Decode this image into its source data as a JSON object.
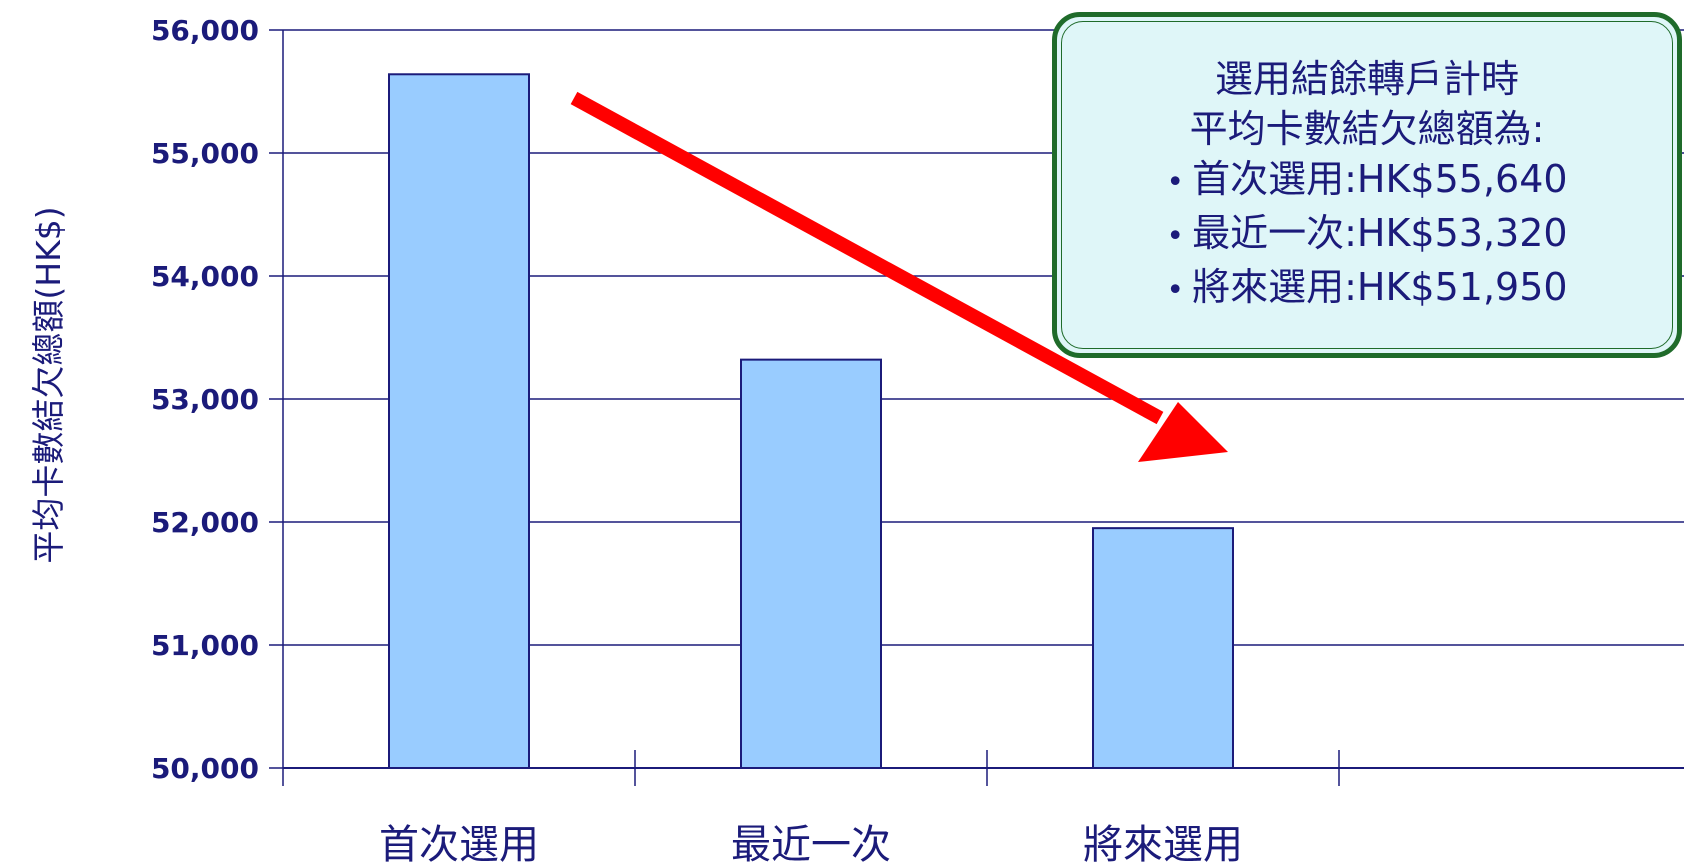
{
  "chart_data": {
    "type": "bar",
    "categories": [
      "首次選用",
      "最近一次",
      "將來選用"
    ],
    "values": [
      55640,
      53320,
      51950
    ],
    "ylabel": "平均卡數結欠總額(HK$)",
    "xlabel": "",
    "ylim": [
      50000,
      56000
    ],
    "y_ticks": [
      "50,000",
      "51,000",
      "52,000",
      "53,000",
      "54,000",
      "55,000",
      "56,000"
    ],
    "y_tick_values": [
      50000,
      51000,
      52000,
      53000,
      54000,
      55000,
      56000
    ],
    "grid": true,
    "bar_color": "#99ccff",
    "bar_border_color": "#1b1b7a",
    "text_color": "#1b1b7a",
    "annotation": {
      "type": "arrow",
      "color": "#ff0000",
      "description": "downward trend"
    }
  },
  "callout": {
    "title_line1": "選用結餘轉戶計時",
    "title_line2": "平均卡數結欠總額為:",
    "items": [
      "首次選用:HK$55,640",
      "最近一次:HK$53,320",
      "將來選用:HK$51,950"
    ],
    "border_color": "#1f6b2a",
    "background_color": "#dff6f8"
  }
}
